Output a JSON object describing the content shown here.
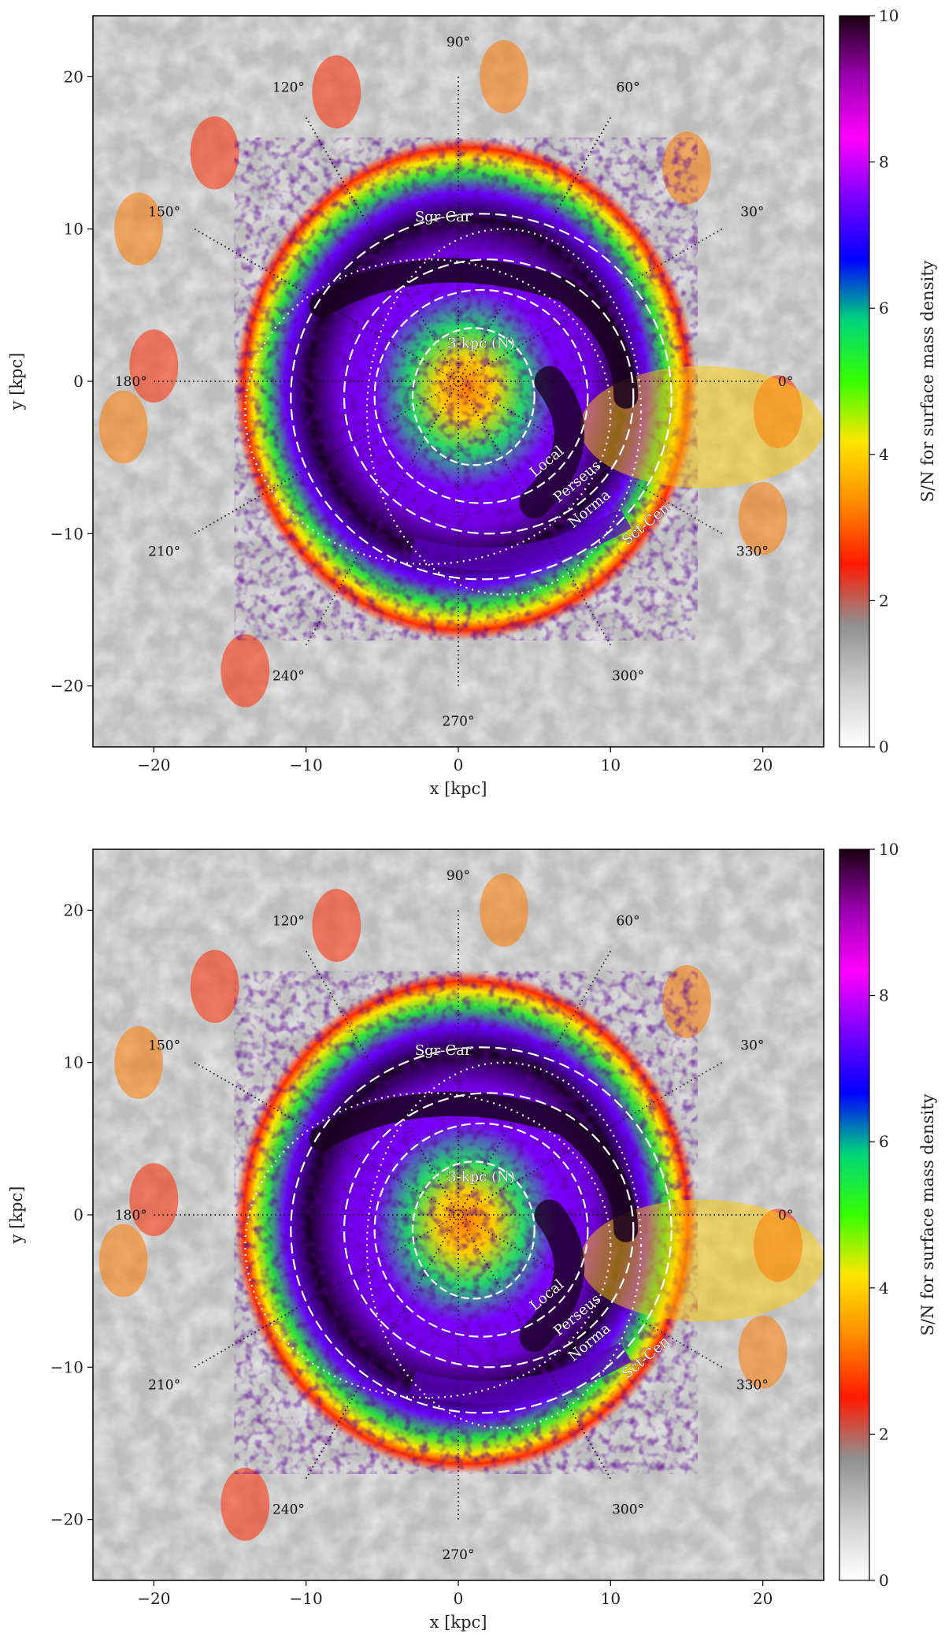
{
  "chart_data": [
    {
      "type": "heatmap",
      "panel": "top",
      "title": "",
      "xlabel": "x [kpc]",
      "ylabel": "y [kpc]",
      "xlim": [
        -24,
        24
      ],
      "ylim": [
        -24,
        24
      ],
      "xticks": [
        -20,
        -10,
        0,
        10,
        20
      ],
      "yticks": [
        -20,
        -10,
        0,
        10,
        20
      ],
      "xtick_labels": [
        "−20",
        "−10",
        "0",
        "10",
        "20"
      ],
      "ytick_labels": [
        "−20",
        "−10",
        "0",
        "10",
        "20"
      ],
      "colorbar": {
        "label": "S/N for surface mass density",
        "range": [
          0,
          10
        ],
        "ticks": [
          0,
          2,
          4,
          6,
          8,
          10
        ],
        "tick_labels": [
          "0",
          "2",
          "4",
          "6",
          "8",
          "10"
        ]
      },
      "longitude_labels": [
        {
          "deg": 0,
          "label": "0°"
        },
        {
          "deg": 30,
          "label": "30°"
        },
        {
          "deg": 60,
          "label": "60°"
        },
        {
          "deg": 90,
          "label": "90°"
        },
        {
          "deg": 120,
          "label": "120°"
        },
        {
          "deg": 150,
          "label": "150°"
        },
        {
          "deg": 180,
          "label": "180°"
        },
        {
          "deg": 210,
          "label": "210°"
        },
        {
          "deg": 240,
          "label": "240°"
        },
        {
          "deg": 270,
          "label": "270°"
        },
        {
          "deg": 300,
          "label": "300°"
        },
        {
          "deg": 330,
          "label": "330°"
        }
      ],
      "arm_labels": [
        "Sgr-Car",
        "3-kpc (N)",
        "Local",
        "Perseus",
        "Norma",
        "Sct-Cen"
      ]
    },
    {
      "type": "heatmap",
      "panel": "bottom",
      "title": "",
      "xlabel": "x [kpc]",
      "ylabel": "y [kpc]",
      "xlim": [
        -24,
        24
      ],
      "ylim": [
        -24,
        24
      ],
      "xticks": [
        -20,
        -10,
        0,
        10,
        20
      ],
      "yticks": [
        -20,
        -10,
        0,
        10,
        20
      ],
      "xtick_labels": [
        "−20",
        "−10",
        "0",
        "10",
        "20"
      ],
      "ytick_labels": [
        "−20",
        "−10",
        "0",
        "10",
        "20"
      ],
      "colorbar": {
        "label": "S/N for surface mass density",
        "range": [
          0,
          10
        ],
        "ticks": [
          0,
          2,
          4,
          6,
          8,
          10
        ],
        "tick_labels": [
          "0",
          "2",
          "4",
          "6",
          "8",
          "10"
        ]
      },
      "longitude_labels": [
        {
          "deg": 0,
          "label": "0°"
        },
        {
          "deg": 30,
          "label": "30°"
        },
        {
          "deg": 60,
          "label": "60°"
        },
        {
          "deg": 90,
          "label": "90°"
        },
        {
          "deg": 120,
          "label": "120°"
        },
        {
          "deg": 150,
          "label": "150°"
        },
        {
          "deg": 180,
          "label": "180°"
        },
        {
          "deg": 210,
          "label": "210°"
        },
        {
          "deg": 240,
          "label": "240°"
        },
        {
          "deg": 270,
          "label": "270°"
        },
        {
          "deg": 300,
          "label": "300°"
        },
        {
          "deg": 330,
          "label": "330°"
        }
      ],
      "arm_labels": [
        "Sgr-Car",
        "3-kpc (N)",
        "Local",
        "Perseus",
        "Norma",
        "Sct-Cen"
      ]
    }
  ],
  "colors": {
    "colormap": [
      "#ffffff",
      "#cfcfcf",
      "#909090",
      "#ff1a00",
      "#ff8a00",
      "#ffe600",
      "#36ff00",
      "#00d67a",
      "#0000ff",
      "#7a00ff",
      "#ff00ff",
      "#9a00b0",
      "#1a0010"
    ],
    "background_gray": "#bdbdbd",
    "overlay": "#ffffff",
    "guide_lines": "#111111"
  }
}
